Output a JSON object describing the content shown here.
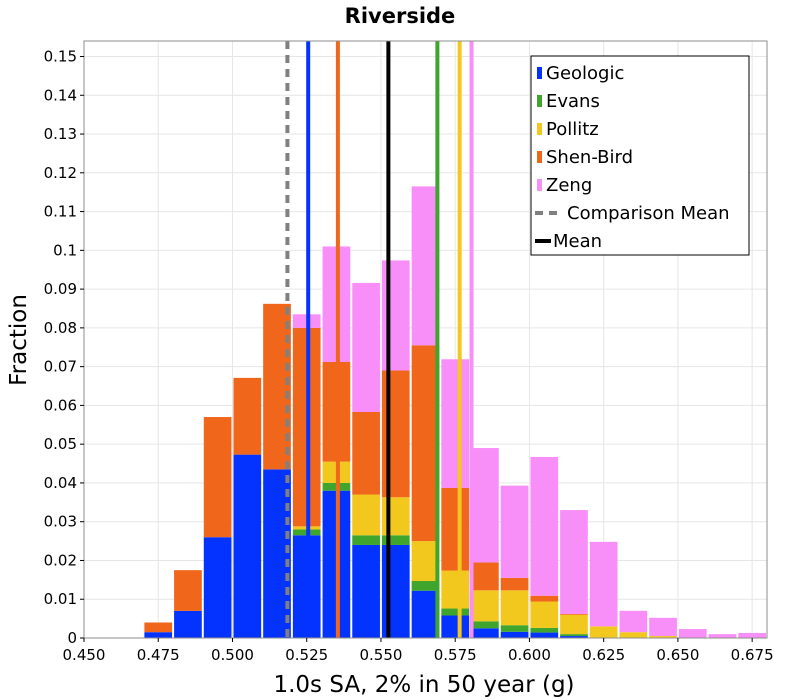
{
  "chart_data": {
    "type": "bar",
    "stacked": true,
    "title": "Riverside",
    "xlabel": "1.0s SA, 2% in 50 year (g)",
    "ylabel": "Fraction",
    "xlim": [
      0.45,
      0.68
    ],
    "ylim": [
      0,
      0.154
    ],
    "xticks": [
      0.45,
      0.475,
      0.5,
      0.525,
      0.55,
      0.575,
      0.6,
      0.625,
      0.65,
      0.675
    ],
    "xtick_labels": [
      "0.450",
      "0.475",
      "0.500",
      "0.525",
      "0.550",
      "0.575",
      "0.600",
      "0.625",
      "0.650",
      "0.675"
    ],
    "yticks": [
      0,
      0.01,
      0.02,
      0.03,
      0.04,
      0.05,
      0.06,
      0.07,
      0.08,
      0.09,
      0.1,
      0.11,
      0.12,
      0.13,
      0.14,
      0.15
    ],
    "ytick_labels": [
      "0",
      "0.01",
      "0.02",
      "0.03",
      "0.04",
      "0.05",
      "0.06",
      "0.07",
      "0.08",
      "0.09",
      "0.1",
      "0.11",
      "0.12",
      "0.13",
      "0.14",
      "0.15"
    ],
    "grid": true,
    "legend_position": "top-right",
    "bin_width": 0.01,
    "bin_centers": [
      0.475,
      0.485,
      0.495,
      0.505,
      0.515,
      0.525,
      0.535,
      0.545,
      0.555,
      0.565,
      0.575,
      0.585,
      0.595,
      0.605,
      0.615,
      0.625,
      0.635,
      0.645,
      0.655,
      0.665,
      0.675
    ],
    "series": [
      {
        "name": "Geologic",
        "color": "#0433ff",
        "values": [
          0.0015,
          0.007,
          0.026,
          0.0473,
          0.0435,
          0.0265,
          0.038,
          0.024,
          0.024,
          0.0122,
          0.0058,
          0.0025,
          0.0016,
          0.0014,
          0.0005,
          0,
          0,
          0,
          0,
          0,
          0
        ]
      },
      {
        "name": "Evans",
        "color": "#3fa52c",
        "values": [
          0,
          0,
          0,
          0,
          0,
          0.0015,
          0.002,
          0.0025,
          0.0025,
          0.0025,
          0.0018,
          0.0018,
          0.0017,
          0.0012,
          0.0005,
          0,
          0,
          0,
          0,
          0,
          0
        ]
      },
      {
        "name": "Pollitz",
        "color": "#f2c71e",
        "values": [
          0,
          0,
          0,
          0,
          0,
          0.0008,
          0.0055,
          0.0105,
          0.0098,
          0.0103,
          0.0098,
          0.008,
          0.009,
          0.0068,
          0.005,
          0.003,
          0.0015,
          0.0005,
          0,
          0,
          0
        ]
      },
      {
        "name": "Shen-Bird",
        "color": "#f0661b",
        "values": [
          0.0025,
          0.0105,
          0.031,
          0.0198,
          0.0427,
          0.0512,
          0.0257,
          0.0213,
          0.0327,
          0.0505,
          0.0213,
          0.0072,
          0.0032,
          0.0015,
          0.0002,
          0,
          0,
          0,
          0,
          0,
          0
        ]
      },
      {
        "name": "Zeng",
        "color": "#f88ef8",
        "values": [
          0,
          0,
          0,
          0,
          0,
          0.0035,
          0.0298,
          0.0333,
          0.0284,
          0.041,
          0.0332,
          0.0295,
          0.0238,
          0.0358,
          0.0268,
          0.0218,
          0.0055,
          0.0047,
          0.0023,
          0.001,
          0.0013
        ]
      }
    ],
    "vertical_lines": [
      {
        "label": "Comparison Mean",
        "x": 0.5185,
        "color": "#808080",
        "style": "dashed"
      },
      {
        "label": "Mean",
        "x": 0.5525,
        "color": "#000000",
        "style": "solid"
      },
      {
        "label": "Geologic",
        "x": 0.5255,
        "color": "#0433ff",
        "style": "solid"
      },
      {
        "label": "Shen-Bird",
        "x": 0.5355,
        "color": "#f0661b",
        "style": "solid"
      },
      {
        "label": "Evans",
        "x": 0.569,
        "color": "#3fa52c",
        "style": "solid"
      },
      {
        "label": "Pollitz",
        "x": 0.5765,
        "color": "#f2c71e",
        "style": "solid"
      },
      {
        "label": "Zeng",
        "x": 0.5805,
        "color": "#f88ef8",
        "style": "solid"
      }
    ],
    "legend": [
      {
        "label": "Geologic",
        "color": "#0433ff",
        "kind": "bar"
      },
      {
        "label": "Evans",
        "color": "#3fa52c",
        "kind": "bar"
      },
      {
        "label": "Pollitz",
        "color": "#f2c71e",
        "kind": "bar"
      },
      {
        "label": "Shen-Bird",
        "color": "#f0661b",
        "kind": "bar"
      },
      {
        "label": "Zeng",
        "color": "#f88ef8",
        "kind": "bar"
      },
      {
        "label": "Comparison Mean",
        "color": "#808080",
        "kind": "dashed"
      },
      {
        "label": "Mean",
        "color": "#000000",
        "kind": "line"
      }
    ]
  }
}
